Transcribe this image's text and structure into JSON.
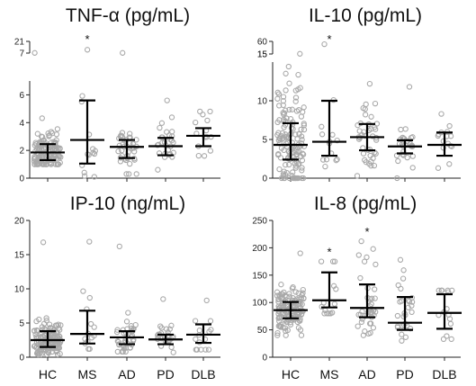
{
  "chart_data": [
    {
      "type": "scatter",
      "title": "TNF-α (pg/mL)",
      "categories": [
        "HC",
        "MS",
        "AD",
        "PD",
        "DLB"
      ],
      "y_segments": [
        {
          "range": [
            0,
            7
          ],
          "ticks": [
            0,
            2,
            4,
            6
          ]
        },
        {
          "range": [
            7,
            21
          ],
          "ticks": [
            7,
            21
          ]
        }
      ],
      "significance": [
        "",
        "*",
        "",
        "",
        ""
      ],
      "groups": [
        {
          "n": 140,
          "median": 1.85,
          "q1": 1.3,
          "q3": 2.45,
          "min": 1.0,
          "max": 7.2
        },
        {
          "n": 14,
          "median": 2.75,
          "q1": 1.05,
          "q3": 5.6,
          "min": 0.1,
          "max": 11
        },
        {
          "n": 40,
          "median": 2.25,
          "q1": 1.45,
          "q3": 2.75,
          "min": 0.3,
          "max": 7.2
        },
        {
          "n": 28,
          "median": 2.3,
          "q1": 1.65,
          "q3": 2.9,
          "min": 0.6,
          "max": 5.6
        },
        {
          "n": 15,
          "median": 3.05,
          "q1": 2.3,
          "q3": 3.6,
          "min": 1.6,
          "max": 4.8
        }
      ]
    },
    {
      "type": "scatter",
      "title": "IL-10 (pg/mL)",
      "categories": [
        "HC",
        "MS",
        "AD",
        "PD",
        "DLB"
      ],
      "y_segments": [
        {
          "range": [
            0,
            15
          ],
          "ticks": [
            0,
            5,
            10,
            15
          ]
        },
        {
          "range": [
            15,
            60
          ],
          "ticks": [
            15,
            60
          ]
        }
      ],
      "significance": [
        "",
        "*",
        "",
        "",
        ""
      ],
      "groups": [
        {
          "n": 140,
          "median": 4.3,
          "q1": 2.4,
          "q3": 7.1,
          "min": 0,
          "max": 15.5
        },
        {
          "n": 14,
          "median": 4.7,
          "q1": 2.9,
          "q3": 10.0,
          "min": 1.5,
          "max": 50
        },
        {
          "n": 40,
          "median": 5.3,
          "q1": 3.6,
          "q3": 7.0,
          "min": 0.3,
          "max": 12.2
        },
        {
          "n": 28,
          "median": 4.1,
          "q1": 3.2,
          "q3": 4.9,
          "min": 0,
          "max": 11.8
        },
        {
          "n": 15,
          "median": 4.3,
          "q1": 2.9,
          "q3": 5.9,
          "min": 1.3,
          "max": 8.3
        }
      ]
    },
    {
      "type": "scatter",
      "title": "IP-10 (ng/mL)",
      "categories": [
        "HC",
        "MS",
        "AD",
        "PD",
        "DLB"
      ],
      "y_segments": [
        {
          "range": [
            0,
            20
          ],
          "ticks": [
            0,
            5,
            10,
            15,
            20
          ]
        }
      ],
      "significance": [
        "",
        "",
        "",
        "",
        ""
      ],
      "groups": [
        {
          "n": 140,
          "median": 2.5,
          "q1": 1.5,
          "q3": 3.8,
          "min": 0.4,
          "max": 16.8
        },
        {
          "n": 14,
          "median": 3.4,
          "q1": 2.0,
          "q3": 6.8,
          "min": 1.2,
          "max": 16.9
        },
        {
          "n": 40,
          "median": 2.9,
          "q1": 1.9,
          "q3": 3.8,
          "min": 0.8,
          "max": 16.2
        },
        {
          "n": 28,
          "median": 2.6,
          "q1": 1.9,
          "q3": 3.3,
          "min": 0.7,
          "max": 8.5
        },
        {
          "n": 15,
          "median": 3.3,
          "q1": 2.1,
          "q3": 4.8,
          "min": 1.1,
          "max": 8.3
        }
      ]
    },
    {
      "type": "scatter",
      "title": "IL-8 (pg/mL)",
      "categories": [
        "HC",
        "MS",
        "AD",
        "PD",
        "DLB"
      ],
      "y_segments": [
        {
          "range": [
            0,
            250
          ],
          "ticks": [
            0,
            50,
            100,
            150,
            200,
            250
          ]
        }
      ],
      "significance": [
        "",
        "*",
        "*",
        "",
        ""
      ],
      "groups": [
        {
          "n": 140,
          "median": 86,
          "q1": 71,
          "q3": 101,
          "min": 40,
          "max": 190
        },
        {
          "n": 14,
          "median": 104,
          "q1": 91,
          "q3": 155,
          "min": 80,
          "max": 175
        },
        {
          "n": 40,
          "median": 90,
          "q1": 73,
          "q3": 133,
          "min": 40,
          "max": 212
        },
        {
          "n": 28,
          "median": 63,
          "q1": 50,
          "q3": 110,
          "min": 30,
          "max": 178
        },
        {
          "n": 15,
          "median": 81,
          "q1": 52,
          "q3": 115,
          "min": 33,
          "max": 122
        }
      ]
    }
  ]
}
